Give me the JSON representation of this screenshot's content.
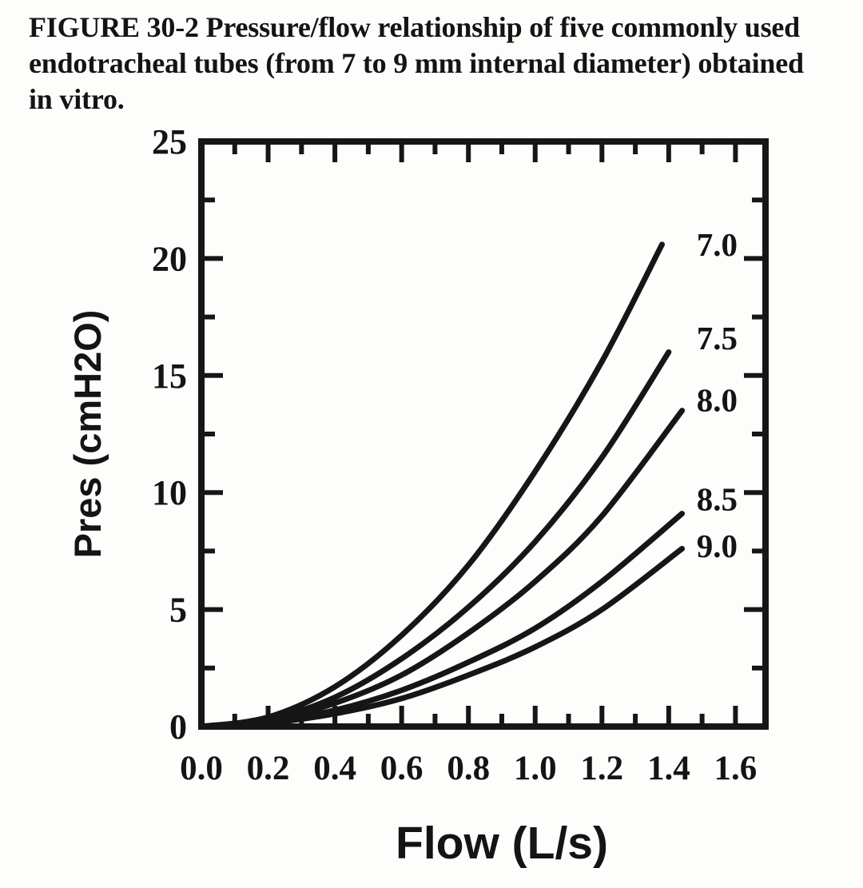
{
  "figure": {
    "caption_lines": [
      "FIGURE 30-2 Pressure/flow relationship of five commonly used",
      "endotracheal tubes (from 7 to 9 mm internal diameter) obtained",
      "in vitro."
    ]
  },
  "chart_data": {
    "type": "line",
    "title": "",
    "xlabel": "Flow (L/s)",
    "ylabel": "Pres (cmH2O)",
    "xlim": [
      0,
      1.69
    ],
    "ylim": [
      0,
      25
    ],
    "x_major_ticks": [
      0.0,
      0.2,
      0.4,
      0.6,
      0.8,
      1.0,
      1.2,
      1.4,
      1.6
    ],
    "x_tick_labels": [
      "0.0",
      "0.2",
      "0.4",
      "0.6",
      "0.8",
      "1.0",
      "1.2",
      "1.4",
      "1.6"
    ],
    "x_minor_step": 0.1,
    "y_major_ticks": [
      0,
      5,
      10,
      15,
      20,
      25
    ],
    "y_tick_labels": [
      "0",
      "5",
      "10",
      "15",
      "20",
      "25"
    ],
    "y_minor_step": 2.5,
    "grid": false,
    "legend_position": "labels-right-of-curves",
    "line_color": "#161616",
    "text_color": "#141414",
    "series": [
      {
        "name": "7.0",
        "x": [
          0,
          0.2,
          0.4,
          0.6,
          0.8,
          1.0,
          1.2,
          1.38
        ],
        "y": [
          0,
          0.4,
          1.7,
          3.9,
          6.9,
          10.9,
          15.6,
          20.6
        ],
        "label_x": 1.545,
        "label_y": 20.6
      },
      {
        "name": "7.5",
        "x": [
          0,
          0.2,
          0.4,
          0.6,
          0.8,
          1.0,
          1.2,
          1.4
        ],
        "y": [
          0,
          0.3,
          1.25,
          2.9,
          5.1,
          7.9,
          11.5,
          16.0
        ],
        "label_x": 1.545,
        "label_y": 16.6
      },
      {
        "name": "8.0",
        "x": [
          0,
          0.2,
          0.4,
          0.6,
          0.8,
          1.0,
          1.2,
          1.44
        ],
        "y": [
          0,
          0.25,
          1.0,
          2.2,
          4.0,
          6.2,
          9.0,
          13.5
        ],
        "label_x": 1.545,
        "label_y": 13.95
      },
      {
        "name": "8.5",
        "x": [
          0,
          0.2,
          0.4,
          0.6,
          0.8,
          1.0,
          1.2,
          1.44
        ],
        "y": [
          0,
          0.18,
          0.7,
          1.55,
          2.75,
          4.2,
          6.2,
          9.1
        ],
        "label_x": 1.545,
        "label_y": 9.72
      },
      {
        "name": "9.0",
        "x": [
          0,
          0.2,
          0.4,
          0.6,
          0.8,
          1.0,
          1.2,
          1.44
        ],
        "y": [
          0,
          0.15,
          0.55,
          1.2,
          2.2,
          3.4,
          5.0,
          7.6
        ],
        "label_x": 1.545,
        "label_y": 7.72
      }
    ]
  }
}
